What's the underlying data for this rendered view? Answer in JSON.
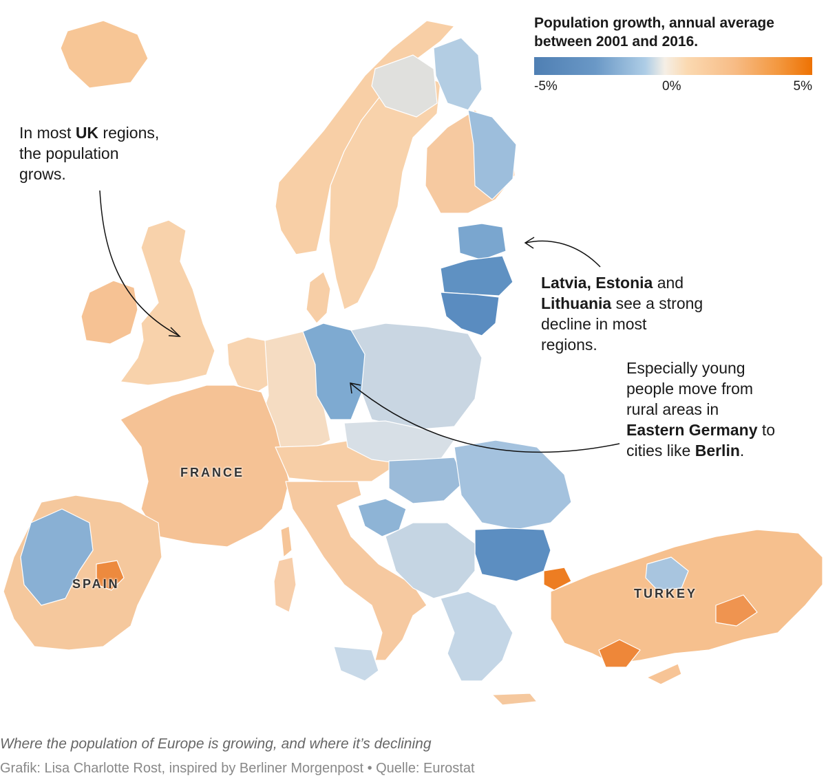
{
  "legend": {
    "title_line1": "Population growth, annual average",
    "title_line2": "between 2001 and 2016.",
    "min_label": "-5%",
    "mid_label": "0%",
    "max_label": "5%",
    "scale_min": -5,
    "scale_max": 5,
    "colors": {
      "declining_strong": "#4f7fb3",
      "declining_light": "#aecde6",
      "neutral": "#f5efe6",
      "growing_light": "#f7bc86",
      "growing_strong": "#ee7203"
    }
  },
  "annotations": {
    "uk": {
      "t1": "In most ",
      "b1": "UK",
      "t2": " regions,",
      "line2": "the population",
      "line3": "grows."
    },
    "baltics": {
      "b1": "Latvia, Estonia",
      "t1": " and",
      "b2": "Lithuania",
      "t2": " see a strong",
      "line3": "decline in most",
      "line4": "regions."
    },
    "germany": {
      "line1": "Especially young",
      "line2": "people move from",
      "line3": "rural areas in",
      "b1": "Eastern Germany",
      "t1": " to",
      "t2": "cities like ",
      "b2": "Berlin",
      "t3": "."
    }
  },
  "countries": {
    "france": "FRANCE",
    "spain": "SPAIN",
    "turkey": "TURKEY"
  },
  "footer": {
    "caption": "Where the population of Europe is growing, and where it’s declining",
    "credit": "Grafik: Lisa Charlotte Rost, inspired by Berliner Morgenpost • Quelle: Eurostat"
  },
  "map_regions": [
    {
      "name": "iceland",
      "color": "#f7c696"
    },
    {
      "name": "norway",
      "color": "#f8cfa6"
    },
    {
      "name": "sweden",
      "color": "#f8d2ab"
    },
    {
      "name": "sweden-north",
      "color": "#e0e0dd"
    },
    {
      "name": "finland",
      "color": "#f6c9a0"
    },
    {
      "name": "finland-north",
      "color": "#b3cde3"
    },
    {
      "name": "finland-east",
      "color": "#9dbedc"
    },
    {
      "name": "estonia",
      "color": "#7aa6cf"
    },
    {
      "name": "latvia",
      "color": "#5f91c2"
    },
    {
      "name": "lithuania",
      "color": "#5a8cc0"
    },
    {
      "name": "uk",
      "color": "#f8d2ab"
    },
    {
      "name": "ireland",
      "color": "#f6c294"
    },
    {
      "name": "denmark",
      "color": "#f7cea6"
    },
    {
      "name": "benelux",
      "color": "#f8d4b0"
    },
    {
      "name": "germany-west",
      "color": "#f5dcc2"
    },
    {
      "name": "germany-east",
      "color": "#7eaad1"
    },
    {
      "name": "poland",
      "color": "#c9d6e2"
    },
    {
      "name": "france",
      "color": "#f5c295"
    },
    {
      "name": "switzerland-austria",
      "color": "#f7cea6"
    },
    {
      "name": "italy",
      "color": "#f6c9a0"
    },
    {
      "name": "sardinia",
      "color": "#f7ceaa"
    },
    {
      "name": "sicily",
      "color": "#c8d9e8"
    },
    {
      "name": "corsica",
      "color": "#f6c598"
    },
    {
      "name": "iberia",
      "color": "#f5c89d"
    },
    {
      "name": "spain-west",
      "color": "#89b0d4"
    },
    {
      "name": "madrid",
      "color": "#ed8a3e"
    },
    {
      "name": "czech-slovakia",
      "color": "#d7dfe6"
    },
    {
      "name": "hungary",
      "color": "#9bbbd9"
    },
    {
      "name": "romania",
      "color": "#a4c2de"
    },
    {
      "name": "bulgaria",
      "color": "#5c8ec1"
    },
    {
      "name": "croatia",
      "color": "#8eb4d6"
    },
    {
      "name": "balkans",
      "color": "#c5d5e3"
    },
    {
      "name": "greece",
      "color": "#c4d6e6"
    },
    {
      "name": "crete",
      "color": "#f5c89e"
    },
    {
      "name": "cyprus",
      "color": "#f7c496"
    },
    {
      "name": "turkey",
      "color": "#f6c08e"
    },
    {
      "name": "turkey-south",
      "color": "#ee8739"
    },
    {
      "name": "turkey-center",
      "color": "#a8c5df"
    },
    {
      "name": "turkey-east",
      "color": "#ef9450"
    },
    {
      "name": "istanbul",
      "color": "#ed7d22"
    }
  ]
}
